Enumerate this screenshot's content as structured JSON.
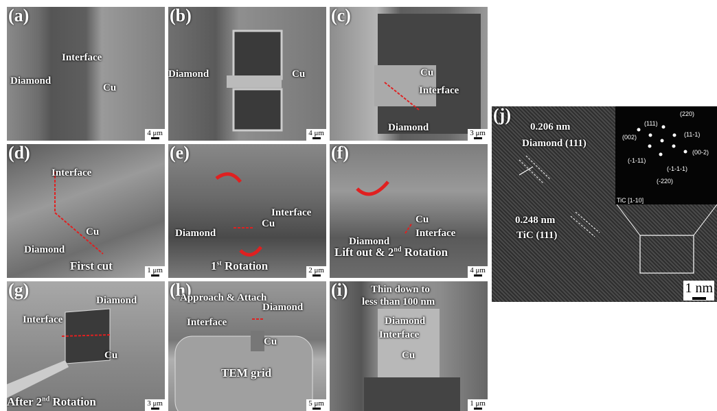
{
  "panels": [
    {
      "label": "(a)",
      "texts": [
        "Diamond",
        "Interface",
        "Cu"
      ],
      "scale": "4 μm"
    },
    {
      "label": "(b)",
      "texts": [
        "Diamond",
        "Cu"
      ],
      "scale": "4 μm"
    },
    {
      "label": "(c)",
      "texts": [
        "Cu",
        "Interface",
        "Diamond"
      ],
      "scale": "3 μm"
    },
    {
      "label": "(d)",
      "texts": [
        "Interface",
        "Cu",
        "Diamond",
        "First cut"
      ],
      "scale": "1 μm"
    },
    {
      "label": "(e)",
      "texts": [
        "Cu",
        "Interface",
        "Diamond"
      ],
      "rich": {
        "text": "1",
        "sup": "st",
        "tail": " Rotation"
      },
      "scale": "2 μm"
    },
    {
      "label": "(f)",
      "texts": [
        "Cu",
        "Interface",
        "Diamond"
      ],
      "rich": {
        "text": "Lift out & 2",
        "sup": "nd",
        "tail": " Rotation"
      },
      "scale": "4 μm"
    },
    {
      "label": "(g)",
      "texts": [
        "Diamond",
        "Interface",
        "Cu"
      ],
      "rich": {
        "text": "After 2",
        "sup": "nd",
        "tail": " Rotation"
      },
      "scale": "3 μm"
    },
    {
      "label": "(h)",
      "texts": [
        "Approach & Attach",
        "Interface",
        "Diamond",
        "Cu",
        "TEM grid"
      ],
      "scale": "5 μm"
    },
    {
      "label": "(i)",
      "texts": [
        "Thin down to",
        "less than 100 nm",
        "Diamond",
        "Interface",
        "Cu"
      ],
      "scale": "1 μm"
    },
    {
      "label": "(j)",
      "texts": [
        "0.206 nm",
        "Diamond (111)",
        "0.248 nm",
        "TiC (111)"
      ],
      "fft": [
        "(220)",
        "(111)",
        "(11-1)",
        "(002)",
        "(00-2)",
        "(-1-11)",
        "(-1-1-1)",
        "(-220)",
        "TiC [1-10]"
      ],
      "scale": "1 nm"
    }
  ]
}
